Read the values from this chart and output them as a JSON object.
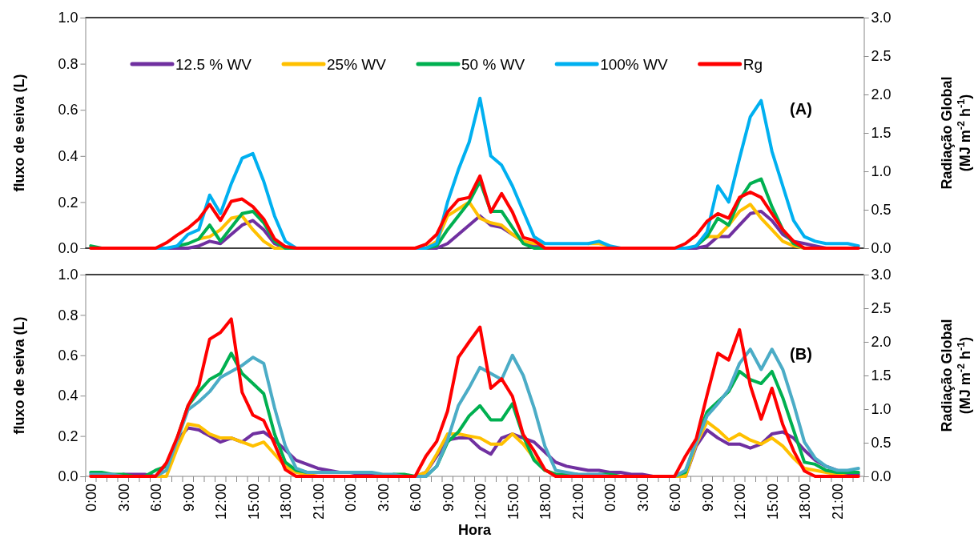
{
  "chart_data": [
    {
      "type": "line",
      "ylabel": "fluxo de seiva (L)",
      "y2label": "Radiação Global (MJ m$^{-2}$ h$^{-1}$)",
      "annotations": [
        "(A)"
      ],
      "legend": "top",
      "tick_labels": "y",
      "categories": [
        null,
        null,
        null,
        null,
        null,
        null,
        null,
        null,
        null,
        null,
        null,
        null,
        null,
        null,
        null,
        null,
        null,
        null,
        null,
        null,
        null,
        null,
        null,
        null,
        null,
        null,
        null,
        null,
        null,
        null,
        null,
        null,
        null,
        null,
        null,
        null,
        null,
        null,
        null,
        null,
        null,
        null,
        null,
        null,
        null,
        null,
        null,
        null,
        null,
        null,
        null,
        null,
        null,
        null,
        null,
        null,
        null,
        null,
        null,
        null,
        null,
        null,
        null,
        null,
        null,
        null,
        null,
        null,
        null,
        null,
        null,
        null
      ],
      "ylim": [
        0,
        1
      ],
      "yticks": [
        {
          "value": 0,
          "label": "0.0"
        },
        {
          "value": 0.2,
          "label": "0.2"
        },
        {
          "value": 0.4,
          "label": "0.4"
        },
        {
          "value": 0.6,
          "label": "0.6"
        },
        {
          "value": 0.8,
          "label": "0.8"
        },
        {
          "value": 1,
          "label": "1.0"
        }
      ],
      "y2lim": [
        0,
        3
      ],
      "y2ticks": [
        {
          "value": 0,
          "label": "0.0"
        },
        {
          "value": 0.5,
          "label": "0.5"
        },
        {
          "value": 1,
          "label": "1.0"
        },
        {
          "value": 1.5,
          "label": "1.5"
        },
        {
          "value": 2,
          "label": "2.0"
        },
        {
          "value": 2.5,
          "label": "2.5"
        },
        {
          "value": 3,
          "label": "3.0"
        }
      ],
      "series": [
        {
          "name": "12.5 % WV",
          "color": "#7030a0",
          "values": [
            null,
            null,
            null,
            null,
            null,
            null,
            null,
            0,
            0,
            0,
            0.01,
            0.03,
            0.02,
            0.06,
            0.1,
            0.12,
            0.08,
            0.02,
            0,
            null,
            null,
            null,
            null,
            null,
            null,
            null,
            null,
            null,
            null,
            null,
            null,
            0,
            0,
            0.02,
            0.06,
            0.1,
            0.14,
            0.1,
            0.09,
            0.06,
            0.03,
            0.01,
            0,
            null,
            null,
            null,
            null,
            null,
            null,
            null,
            null,
            null,
            null,
            null,
            null,
            0,
            0,
            0.01,
            0.05,
            0.05,
            0.1,
            0.15,
            0.16,
            0.12,
            0.06,
            0.03,
            0.02,
            0.01,
            0,
            null,
            null,
            null
          ]
        },
        {
          "name": "25% WV",
          "color": "#ffc000",
          "values": [
            null,
            null,
            null,
            null,
            null,
            null,
            null,
            null,
            null,
            null,
            0.04,
            0.05,
            0.08,
            0.13,
            0.14,
            0.08,
            0.03,
            0,
            0,
            null,
            null,
            null,
            null,
            null,
            null,
            null,
            null,
            null,
            null,
            null,
            null,
            0,
            0.03,
            0.14,
            0.17,
            0.2,
            0.13,
            0.11,
            0.1,
            0.06,
            0.03,
            0.02,
            0.02,
            null,
            null,
            null,
            0.02,
            0.02,
            0.01,
            null,
            null,
            null,
            null,
            null,
            null,
            null,
            null,
            0.05,
            0.05,
            0.1,
            0.16,
            0.19,
            0.13,
            0.08,
            0.03,
            0.01,
            0,
            null,
            null,
            null,
            null,
            null
          ]
        },
        {
          "name": "50 % WV",
          "color": "#00b050",
          "values": [
            0.01,
            0,
            null,
            null,
            null,
            null,
            null,
            null,
            0.01,
            0.02,
            0.04,
            0.1,
            0.03,
            0.09,
            0.15,
            0.16,
            0.11,
            0.03,
            0,
            0,
            null,
            null,
            null,
            null,
            null,
            null,
            null,
            null,
            null,
            null,
            null,
            0,
            0.01,
            0.08,
            0.14,
            0.2,
            0.29,
            0.16,
            0.16,
            0.09,
            0.02,
            0,
            0,
            null,
            null,
            null,
            null,
            null,
            null,
            null,
            null,
            null,
            null,
            null,
            null,
            null,
            0.01,
            0.05,
            0.13,
            0.1,
            0.21,
            0.28,
            0.3,
            0.18,
            0.08,
            0.02,
            0,
            null,
            null,
            null,
            null,
            null
          ]
        },
        {
          "name": "100% WV",
          "color": "#00b0f0",
          "values": [
            null,
            null,
            null,
            null,
            null,
            null,
            0,
            0,
            0.01,
            0.06,
            0.08,
            0.23,
            0.15,
            0.28,
            0.39,
            0.41,
            0.29,
            0.14,
            0.03,
            0,
            null,
            null,
            null,
            null,
            null,
            null,
            null,
            null,
            null,
            null,
            0,
            0,
            0.02,
            0.2,
            0.34,
            0.46,
            0.65,
            0.4,
            0.36,
            0.27,
            0.16,
            0.05,
            0.02,
            0.02,
            0.02,
            0.02,
            0.02,
            0.03,
            0.01,
            0,
            null,
            null,
            null,
            null,
            0,
            0,
            0.01,
            0.07,
            0.27,
            0.2,
            0.39,
            0.57,
            0.64,
            0.42,
            0.27,
            0.12,
            0.05,
            0.03,
            0.02,
            0.02,
            0.02,
            0.01
          ]
        },
        {
          "name": "Rg",
          "color": "#ff0000",
          "axis": "y2",
          "values": [
            0,
            0,
            0,
            0,
            0,
            0,
            0,
            0.07,
            0.17,
            0.26,
            0.38,
            0.57,
            0.36,
            0.61,
            0.64,
            0.54,
            0.38,
            0.12,
            0.02,
            0,
            0,
            0,
            0,
            0,
            0,
            0,
            0,
            0,
            0,
            0,
            0,
            0.05,
            0.18,
            0.47,
            0.63,
            0.66,
            0.94,
            0.47,
            0.71,
            0.47,
            0.14,
            0.1,
            0,
            0,
            0,
            0,
            0,
            0,
            0,
            0,
            0,
            0,
            0,
            0,
            0,
            0.06,
            0.17,
            0.35,
            0.45,
            0.39,
            0.66,
            0.73,
            0.66,
            0.45,
            0.24,
            0.09,
            0,
            0,
            0,
            0,
            0,
            0
          ]
        }
      ]
    },
    {
      "type": "line",
      "xlabel": "Hora",
      "ylabel": "fluxo de seiva (L)",
      "y2label": "Radiação Global (MJ m$^{-2}$ h$^{-1}$)",
      "annotations": [
        "(B)"
      ],
      "categories": [
        "0:00",
        null,
        null,
        "3:00",
        null,
        null,
        "6:00",
        null,
        null,
        "9:00",
        null,
        null,
        "12:00",
        null,
        null,
        "15:00",
        null,
        null,
        "18:00",
        null,
        null,
        "21:00",
        null,
        null,
        "0:00",
        null,
        null,
        "3:00",
        null,
        null,
        "6:00",
        null,
        null,
        "9:00",
        null,
        null,
        "12:00",
        null,
        null,
        "15:00",
        null,
        null,
        "18:00",
        null,
        null,
        "21:00",
        null,
        null,
        "0:00",
        null,
        null,
        "3:00",
        null,
        null,
        "6:00",
        null,
        null,
        "9:00",
        null,
        null,
        "12:00",
        null,
        null,
        "15:00",
        null,
        null,
        "18:00",
        null,
        null,
        "21:00",
        null,
        null
      ],
      "ylim": [
        0,
        1
      ],
      "yticks": [
        {
          "value": 0,
          "label": "0.0"
        },
        {
          "value": 0.2,
          "label": "0.2"
        },
        {
          "value": 0.4,
          "label": "0.4"
        },
        {
          "value": 0.6,
          "label": "0.6"
        },
        {
          "value": 0.8,
          "label": "0.8"
        },
        {
          "value": 1,
          "label": "1.0"
        }
      ],
      "y2lim": [
        0,
        3
      ],
      "y2ticks": [
        {
          "value": 0,
          "label": "0.0"
        },
        {
          "value": 0.5,
          "label": "0.5"
        },
        {
          "value": 1,
          "label": "1.0"
        },
        {
          "value": 1.5,
          "label": "1.5"
        },
        {
          "value": 2,
          "label": "2.0"
        },
        {
          "value": 2.5,
          "label": "2.5"
        },
        {
          "value": 3,
          "label": "3.0"
        }
      ],
      "series": [
        {
          "color": "#7030a0",
          "values": [
            null,
            null,
            null,
            0.01,
            0.01,
            0.01,
            0,
            0.06,
            0.18,
            0.24,
            0.23,
            0.2,
            0.17,
            0.19,
            0.17,
            0.21,
            0.22,
            0.18,
            0.13,
            0.08,
            0.06,
            0.04,
            0.03,
            0.02,
            0.02,
            0.01,
            0.01,
            0,
            null,
            null,
            0,
            0.02,
            0.1,
            0.18,
            0.19,
            0.19,
            0.14,
            0.11,
            0.19,
            0.21,
            0.19,
            0.17,
            0.12,
            0.07,
            0.05,
            0.04,
            0.03,
            0.03,
            0.02,
            0.02,
            0.01,
            0.01,
            0,
            null,
            null,
            0,
            0.15,
            0.23,
            0.19,
            0.16,
            0.16,
            0.14,
            0.16,
            0.21,
            0.22,
            0.19,
            0.13,
            0.08,
            0.05,
            0.03,
            0.01,
            0.01
          ]
        },
        {
          "color": "#ffc000",
          "values": [
            null,
            null,
            null,
            null,
            null,
            null,
            0,
            0,
            0.14,
            0.26,
            0.25,
            0.21,
            0.19,
            0.19,
            0.17,
            0.15,
            0.17,
            0.11,
            0.05,
            0.02,
            0.01,
            0,
            null,
            null,
            null,
            null,
            null,
            null,
            null,
            null,
            0,
            0.02,
            0.11,
            0.21,
            0.21,
            0.2,
            0.19,
            0.16,
            0.16,
            0.21,
            0.16,
            0.09,
            0.03,
            0.01,
            0,
            null,
            null,
            null,
            null,
            null,
            null,
            null,
            null,
            null,
            0,
            0,
            0.16,
            0.27,
            0.23,
            0.18,
            0.21,
            0.18,
            0.16,
            0.19,
            0.15,
            0.09,
            0.04,
            0.03,
            0.02,
            0.01,
            0,
            null
          ]
        },
        {
          "color": "#00b050",
          "values": [
            0.02,
            0.02,
            0.01,
            0.01,
            0,
            0,
            0.03,
            0.05,
            0.19,
            0.35,
            0.42,
            0.48,
            0.51,
            0.61,
            0.51,
            0.46,
            0.41,
            0.21,
            0.07,
            0.03,
            0.02,
            null,
            null,
            null,
            null,
            null,
            null,
            null,
            0.01,
            0.01,
            0,
            0,
            0.05,
            0.17,
            0.22,
            0.3,
            0.35,
            0.28,
            0.28,
            0.36,
            0.2,
            0.08,
            0.03,
            0.01,
            0.01,
            0.01,
            null,
            0.01,
            0.01,
            0,
            null,
            null,
            null,
            null,
            0,
            0.02,
            0.18,
            0.32,
            0.37,
            0.42,
            0.52,
            0.48,
            0.46,
            0.52,
            0.39,
            0.23,
            0.07,
            0.06,
            0.03,
            0.02,
            0.02,
            0.02
          ]
        },
        {
          "color": "#4bacc6",
          "values": [
            0.01,
            0.01,
            0.01,
            0,
            null,
            null,
            0,
            0.03,
            0.18,
            0.33,
            0.37,
            0.42,
            0.49,
            0.52,
            0.55,
            0.59,
            0.56,
            0.34,
            0.15,
            0.04,
            0.02,
            0.02,
            0.02,
            0.02,
            0.02,
            0.02,
            0.02,
            0.01,
            0.01,
            0,
            0,
            0,
            0.05,
            0.18,
            0.35,
            0.44,
            0.54,
            0.51,
            0.48,
            0.6,
            0.5,
            0.34,
            0.15,
            0.03,
            0.02,
            0.01,
            0.01,
            0.01,
            0,
            null,
            null,
            null,
            null,
            null,
            0,
            0.03,
            0.17,
            0.3,
            0.36,
            0.43,
            0.56,
            0.63,
            0.53,
            0.63,
            0.53,
            0.36,
            0.17,
            0.09,
            0.05,
            0.03,
            0.03,
            0.04
          ]
        },
        {
          "color": "#ff0000",
          "axis": "y2",
          "values": [
            0,
            0,
            0,
            0,
            0,
            0,
            0,
            0.2,
            0.58,
            1.05,
            1.35,
            2.04,
            2.14,
            2.34,
            1.25,
            0.91,
            0.83,
            0.48,
            0.1,
            0,
            0,
            0,
            0,
            0,
            0,
            0,
            0,
            0,
            0,
            0,
            0,
            0.3,
            0.52,
            0.97,
            1.77,
            2.0,
            2.22,
            1.31,
            1.45,
            1.19,
            0.62,
            0.38,
            0.1,
            0,
            0,
            0,
            0,
            0,
            0,
            0,
            0,
            0,
            0,
            0,
            0,
            0.3,
            0.56,
            1.21,
            1.83,
            1.73,
            2.18,
            1.35,
            0.85,
            1.31,
            0.77,
            0.38,
            0.08,
            0,
            0,
            0,
            0,
            0
          ]
        }
      ]
    }
  ]
}
